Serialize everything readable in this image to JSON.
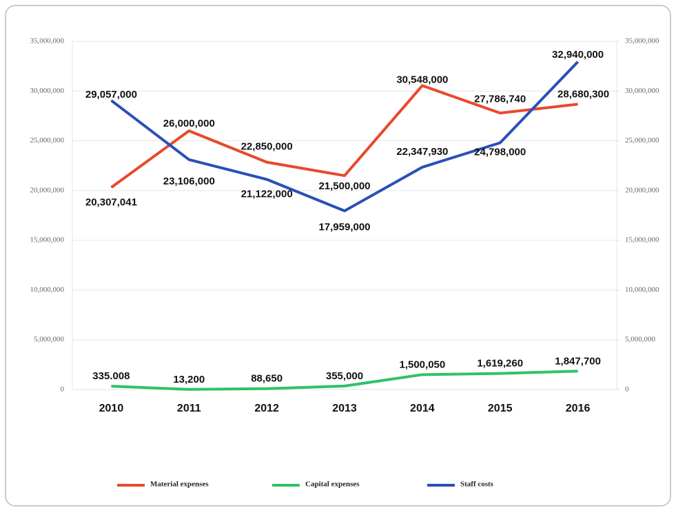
{
  "chart_data": {
    "type": "line",
    "categories": [
      "2010",
      "2011",
      "2012",
      "2013",
      "2014",
      "2015",
      "2016"
    ],
    "series": [
      {
        "name": "Material expenses",
        "color": "#e8492c",
        "values": [
          20307041,
          26000000,
          22850000,
          21500000,
          30548000,
          27786740,
          28680300
        ],
        "value_labels": [
          "20,307,041",
          "26,000,000",
          "22,850,000",
          "21,500,000",
          "30,548,000",
          "27,786,740",
          "28,680,300"
        ]
      },
      {
        "name": "Capital expenses",
        "color": "#2ec26a",
        "values": [
          335008,
          13200,
          88650,
          355000,
          1500050,
          1619260,
          1847700
        ],
        "value_labels": [
          "335.008",
          "13,200",
          "88,650",
          "355,000",
          "1,500,050",
          "1,619,260",
          "1,847,700"
        ]
      },
      {
        "name": "Staff costs",
        "color": "#2a4fb8",
        "values": [
          29057000,
          23106000,
          21122000,
          17959000,
          22347930,
          24798000,
          32940000
        ],
        "value_labels": [
          "29,057,000",
          "23,106,000",
          "21,122,000",
          "17,959,000",
          "22,347,930",
          "24,798,000",
          "32,940,000"
        ]
      }
    ],
    "ylim": [
      0,
      35000000
    ],
    "yticks": [
      0,
      {
        "value": 5000000,
        "label": "5,000,000"
      },
      {
        "value": 10000000,
        "label": "10,000,000"
      },
      {
        "value": 15000000,
        "label": "15,000,000"
      },
      {
        "value": 20000000,
        "label": "20,000,000"
      },
      {
        "value": 25000000,
        "label": "25,000,000"
      },
      {
        "value": 30000000,
        "label": "30,000,000"
      },
      {
        "value": 35000000,
        "label": "35,000,000"
      }
    ],
    "y2lim": [
      0,
      35000000
    ],
    "y2ticks": [
      0,
      {
        "value": 5000000,
        "label": "5,000,000"
      },
      {
        "value": 10000000,
        "label": "10,000,000"
      },
      {
        "value": 15000000,
        "label": "15,000,000"
      },
      {
        "value": 20000000,
        "label": "20,000,000"
      },
      {
        "value": 25000000,
        "label": "25,000,000"
      },
      {
        "value": 30000000,
        "label": "30,000,000"
      },
      {
        "value": 35000000,
        "label": "35,000,000"
      }
    ],
    "grid": true,
    "legend": "bottom"
  }
}
